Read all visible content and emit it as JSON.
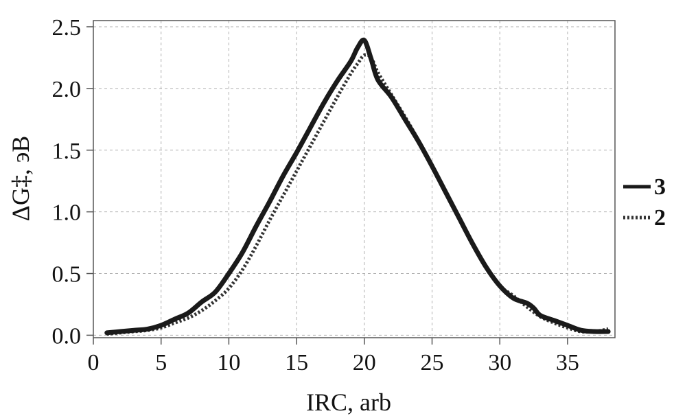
{
  "chart_data": {
    "type": "line",
    "xlabel": "IRC, arb",
    "ylabel": "ΔG‡, эВ",
    "xlim": [
      0,
      38.5
    ],
    "ylim": [
      -0.02,
      2.55
    ],
    "xticks": [
      0,
      5,
      10,
      15,
      20,
      25,
      30,
      35
    ],
    "yticks": [
      0.0,
      0.5,
      1.0,
      1.5,
      2.0,
      2.5
    ],
    "xtick_labels": [
      "0",
      "5",
      "10",
      "15",
      "20",
      "25",
      "30",
      "35"
    ],
    "ytick_labels": [
      "0.0",
      "0.5",
      "1.0",
      "1.5",
      "2.0",
      "2.5"
    ],
    "grid": true,
    "legend_position": "right",
    "series": [
      {
        "name": "3",
        "style": "solid",
        "color": "#1a1a1a",
        "x": [
          1,
          2,
          3,
          4,
          5,
          6,
          7,
          8,
          9,
          10,
          11,
          12,
          13,
          14,
          15,
          16,
          17,
          18,
          19,
          19.5,
          20,
          20.5,
          21,
          22,
          23,
          24,
          25,
          26,
          27,
          28,
          29,
          30,
          31,
          32,
          32.5,
          33,
          34,
          35,
          36,
          37,
          38
        ],
        "y": [
          0.02,
          0.03,
          0.04,
          0.05,
          0.08,
          0.13,
          0.18,
          0.27,
          0.35,
          0.5,
          0.67,
          0.88,
          1.08,
          1.29,
          1.48,
          1.68,
          1.88,
          2.06,
          2.22,
          2.33,
          2.39,
          2.24,
          2.07,
          1.93,
          1.75,
          1.57,
          1.37,
          1.16,
          0.95,
          0.74,
          0.55,
          0.4,
          0.3,
          0.26,
          0.22,
          0.16,
          0.12,
          0.08,
          0.04,
          0.03,
          0.03
        ]
      },
      {
        "name": "2",
        "style": "dotted",
        "color": "#333333",
        "x": [
          1,
          2,
          3,
          4,
          5,
          6,
          7,
          8,
          9,
          10,
          11,
          12,
          13,
          14,
          15,
          16,
          17,
          18,
          19,
          19.5,
          20,
          20.5,
          21,
          22,
          23,
          24,
          25,
          26,
          27,
          28,
          29,
          30,
          31,
          32,
          33,
          34,
          35,
          36,
          37,
          38
        ],
        "y": [
          0.01,
          0.02,
          0.03,
          0.04,
          0.06,
          0.1,
          0.14,
          0.2,
          0.28,
          0.38,
          0.53,
          0.72,
          0.93,
          1.13,
          1.33,
          1.53,
          1.73,
          1.93,
          2.12,
          2.2,
          2.27,
          2.25,
          2.13,
          1.95,
          1.77,
          1.58,
          1.38,
          1.16,
          0.95,
          0.74,
          0.55,
          0.4,
          0.32,
          0.23,
          0.15,
          0.1,
          0.06,
          0.03,
          0.03,
          0.05
        ]
      }
    ]
  }
}
